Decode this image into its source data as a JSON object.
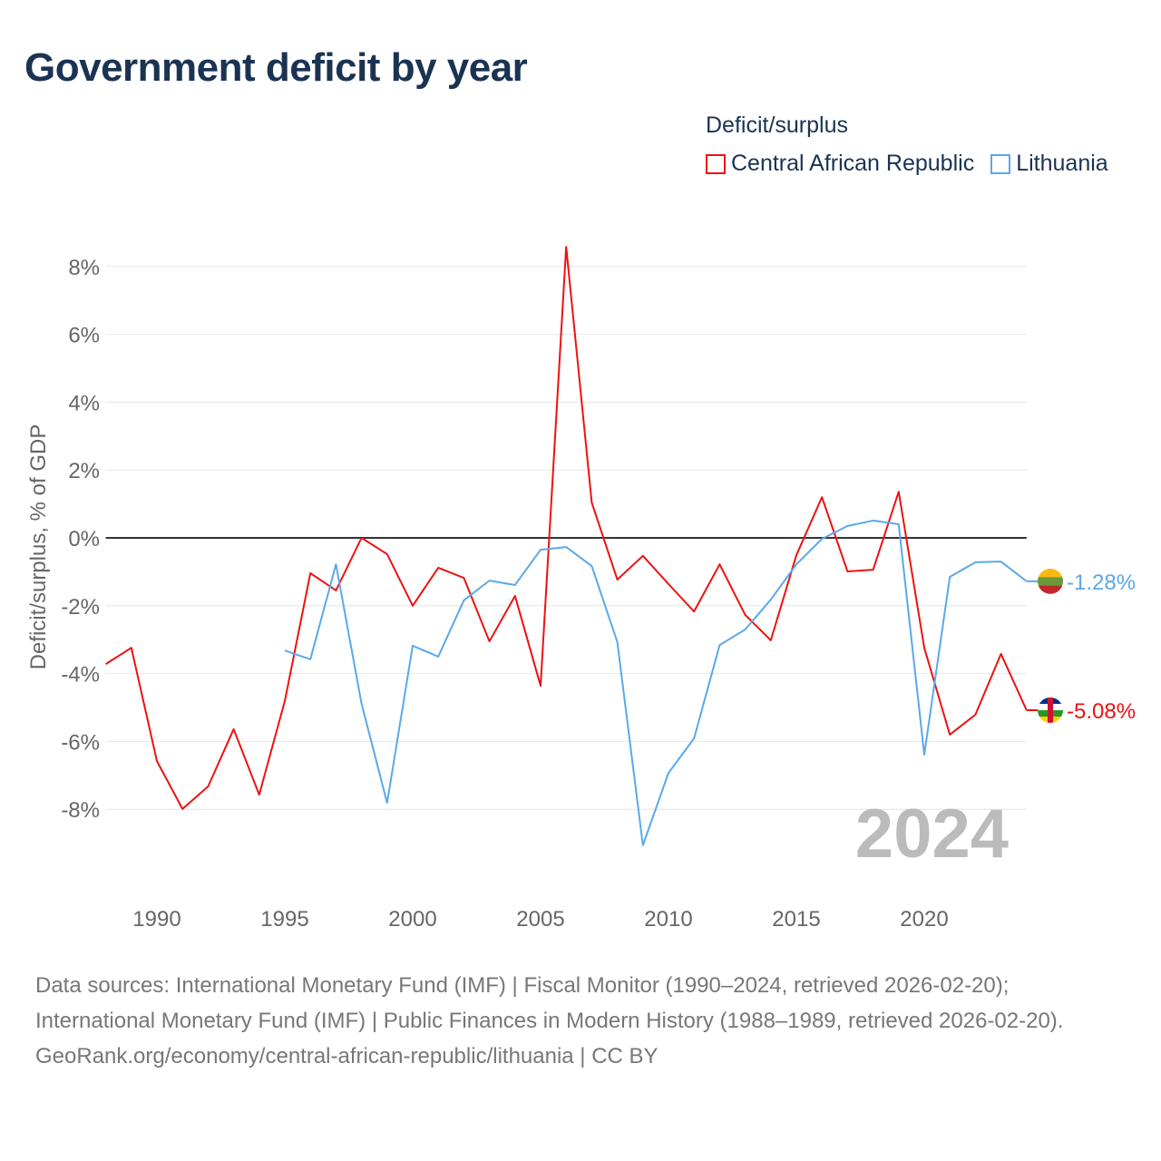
{
  "title": "Government deficit by year",
  "legend_title": "Deficit/surplus",
  "footer": {
    "line1": "Data sources: International Monetary Fund (IMF) | Fiscal Monitor (1990–2024, retrieved 2026-02-20); International Monetary Fund (IMF) | Public Finances in Modern History (1988–1989, retrieved 2026-02-20).",
    "line2": "GeoRank.org/economy/central-african-republic/lithuania | CC BY"
  },
  "chart_data": {
    "type": "line",
    "title": "Government deficit by year",
    "ylabel": "Deficit/surplus, % of GDP",
    "xlabel": "",
    "xlim": [
      1988,
      2024
    ],
    "ylim": [
      -10.5,
      8.6
    ],
    "yticks": [
      8,
      6,
      4,
      2,
      0,
      -2,
      -4,
      -6,
      -8
    ],
    "ytick_labels": [
      "8%",
      "6%",
      "4%",
      "2%",
      "0%",
      "-2%",
      "-4%",
      "-6%",
      "-8%"
    ],
    "xticks": [
      1990,
      1995,
      2000,
      2005,
      2010,
      2015,
      2020
    ],
    "xtick_labels": [
      "1990",
      "1995",
      "2000",
      "2005",
      "2010",
      "2015",
      "2020"
    ],
    "year_label": "2024",
    "grid": true,
    "legend_position": "top-right",
    "series": [
      {
        "name": "Central African Republic",
        "color": "#ee1111",
        "end_label": "-5.08%",
        "start": 1988,
        "values": [
          -3.72,
          -3.24,
          -6.58,
          -7.99,
          -7.33,
          -5.64,
          -7.57,
          -4.81,
          -1.04,
          -1.55,
          0.0,
          -0.48,
          -2.0,
          -0.88,
          -1.18,
          -3.05,
          -1.71,
          -4.36,
          8.58,
          1.04,
          -1.23,
          -0.53,
          -1.36,
          -2.17,
          -0.78,
          -2.27,
          -3.02,
          -0.51,
          1.2,
          -0.99,
          -0.94,
          1.36,
          -3.24,
          -5.8,
          -5.21,
          -3.42,
          -5.08
        ]
      },
      {
        "name": "Lithuania",
        "color": "#5ba8ea",
        "end_label": "-1.28%",
        "start": 1995,
        "values": [
          -3.32,
          -3.58,
          -0.78,
          -4.89,
          -7.81,
          -3.18,
          -3.5,
          -1.84,
          -1.26,
          -1.39,
          -0.35,
          -0.27,
          -0.83,
          -3.07,
          -9.06,
          -6.93,
          -5.91,
          -3.16,
          -2.7,
          -1.82,
          -0.78,
          -0.03,
          0.35,
          0.51,
          0.4,
          -6.39,
          -1.15,
          -0.72,
          -0.7,
          -1.28
        ]
      }
    ]
  }
}
